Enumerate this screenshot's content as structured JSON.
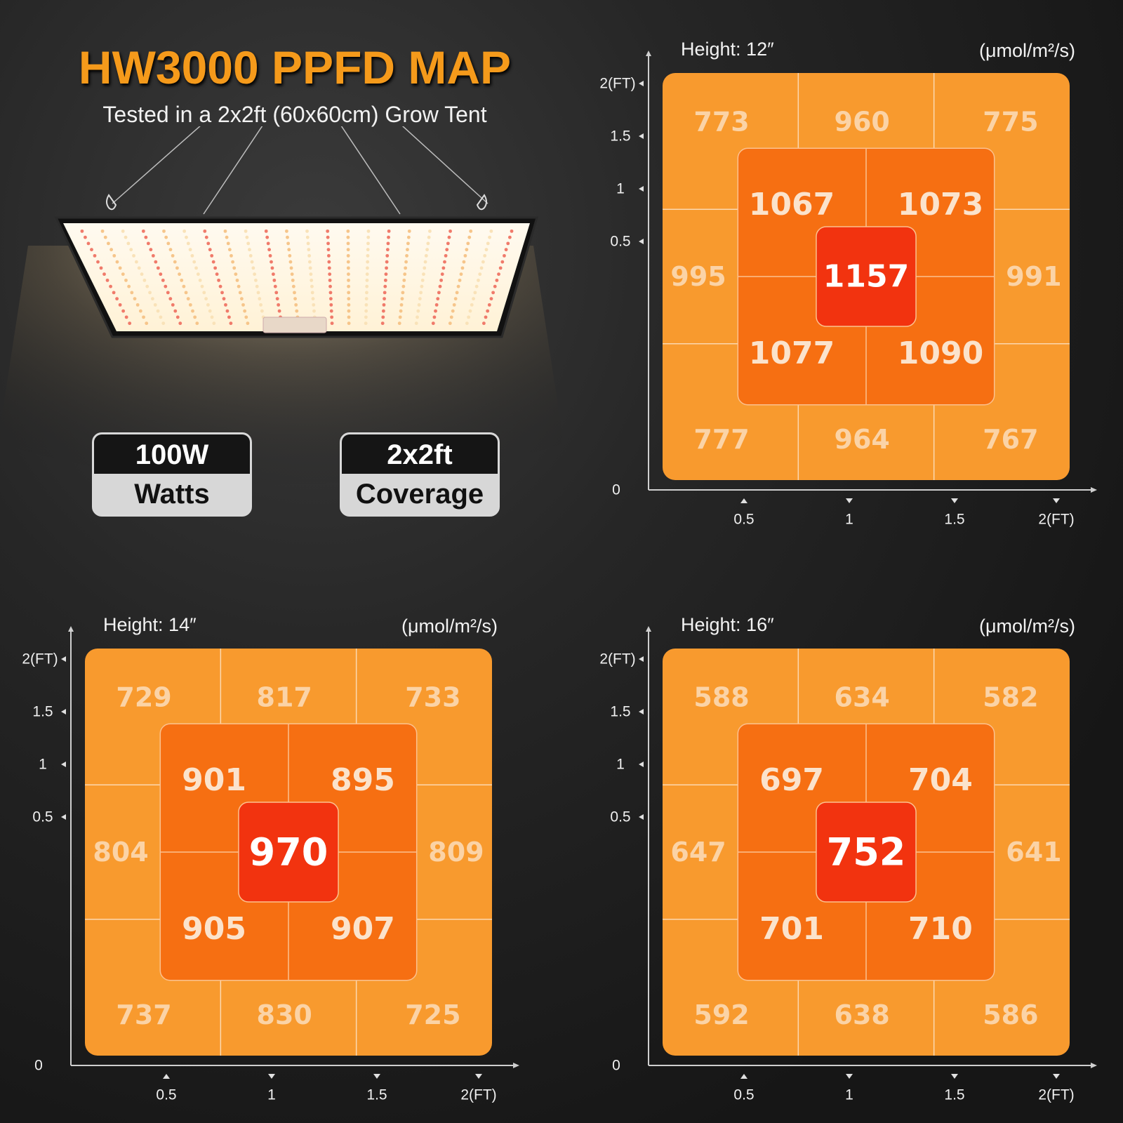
{
  "header": {
    "title": "HW3000 PPFD MAP",
    "subtitle": "Tested in a 2x2ft (60x60cm) Grow Tent"
  },
  "badges": [
    {
      "value": "100W",
      "label": "Watts"
    },
    {
      "value": "2x2ft",
      "label": "Coverage"
    }
  ],
  "colors": {
    "outer": "#f89a2e",
    "inner": "#f66f12",
    "center": "#f2330f",
    "outer_text": "#fbd3a6",
    "inner_text": "#fbe3cc",
    "center_text": "#ffffff",
    "headline": "#f59a1b"
  },
  "chart_data": [
    {
      "type": "heatmap",
      "title": "Height: 12″",
      "unit": "(μmol/m²/s)",
      "x_ticks": [
        "0.5",
        "1",
        "1.5",
        "2(FT)"
      ],
      "y_ticks": [
        "0",
        "0.5",
        "1",
        "1.5",
        "2(FT)"
      ],
      "outer_ring": {
        "top": [
          773,
          960,
          775
        ],
        "left": 995,
        "right": 991,
        "bottom": [
          777,
          964,
          767
        ]
      },
      "inner_ring": {
        "top_left": 1067,
        "top_right": 1073,
        "bottom_left": 1077,
        "bottom_right": 1090
      },
      "center": 1157
    },
    {
      "type": "heatmap",
      "title": "Height: 14″",
      "unit": "(μmol/m²/s)",
      "x_ticks": [
        "0.5",
        "1",
        "1.5",
        "2(FT)"
      ],
      "y_ticks": [
        "0",
        "0.5",
        "1",
        "1.5",
        "2(FT)"
      ],
      "outer_ring": {
        "top": [
          729,
          817,
          733
        ],
        "left": 804,
        "right": 809,
        "bottom": [
          737,
          830,
          725
        ]
      },
      "inner_ring": {
        "top_left": 901,
        "top_right": 895,
        "bottom_left": 905,
        "bottom_right": 907
      },
      "center": 970
    },
    {
      "type": "heatmap",
      "title": "Height: 16″",
      "unit": "(μmol/m²/s)",
      "x_ticks": [
        "0.5",
        "1",
        "1.5",
        "2(FT)"
      ],
      "y_ticks": [
        "0",
        "0.5",
        "1",
        "1.5",
        "2(FT)"
      ],
      "outer_ring": {
        "top": [
          588,
          634,
          582
        ],
        "left": 647,
        "right": 641,
        "bottom": [
          592,
          638,
          586
        ]
      },
      "inner_ring": {
        "top_left": 697,
        "top_right": 704,
        "bottom_left": 701,
        "bottom_right": 710
      },
      "center": 752
    }
  ]
}
